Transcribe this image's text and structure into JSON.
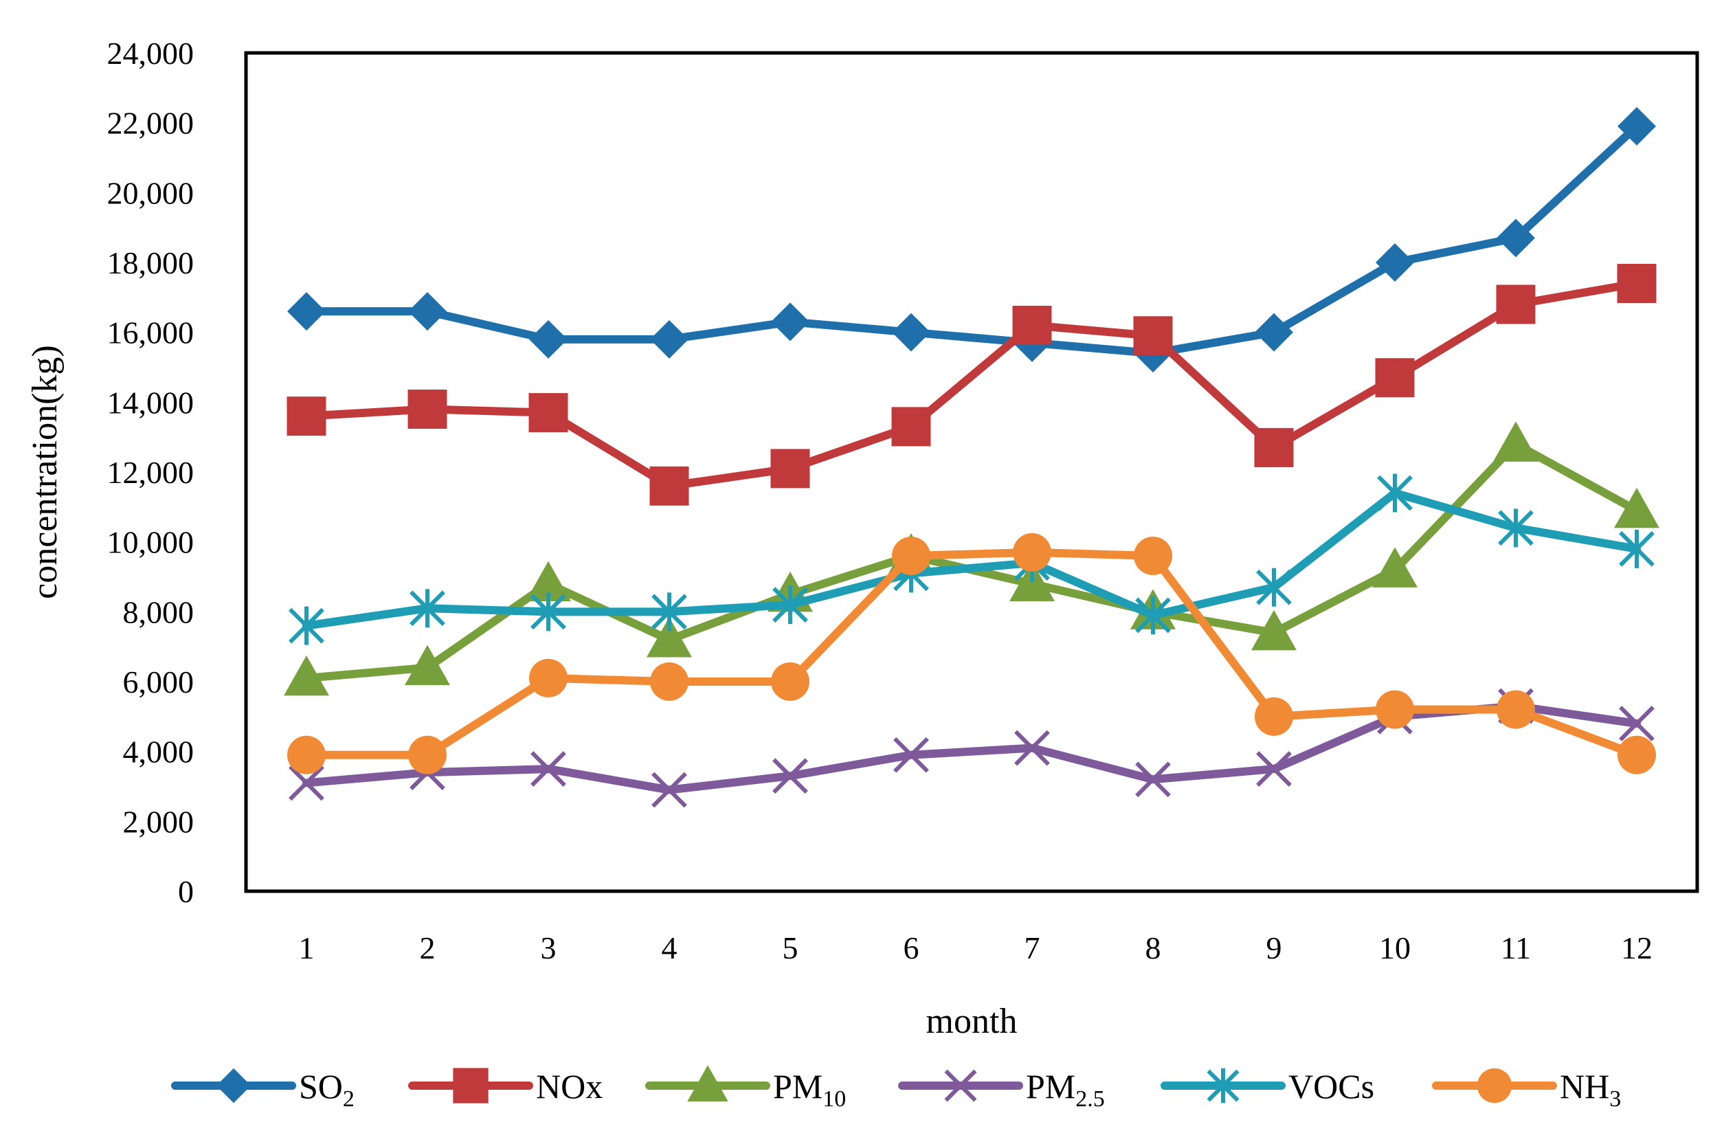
{
  "chart_data": {
    "type": "line",
    "title": "",
    "xlabel": "month",
    "ylabel": "concentration(kg)",
    "categories": [
      "1",
      "2",
      "3",
      "4",
      "5",
      "6",
      "7",
      "8",
      "9",
      "10",
      "11",
      "12"
    ],
    "ylim": [
      0,
      24000
    ],
    "yticks": [
      0,
      2000,
      4000,
      6000,
      8000,
      10000,
      12000,
      14000,
      16000,
      18000,
      20000,
      22000,
      24000
    ],
    "ytick_labels": [
      "0",
      "2,000",
      "4,000",
      "6,000",
      "8,000",
      "10,000",
      "12,000",
      "14,000",
      "16,000",
      "18,000",
      "20,000",
      "22,000",
      "24,000"
    ],
    "grid": false,
    "legend_position": "bottom",
    "series": [
      {
        "name": "SO2",
        "label_main": "SO",
        "label_sub": "2",
        "color": "#1F6FAB",
        "marker": "diamond",
        "values": [
          16600,
          16600,
          15800,
          15800,
          16300,
          16000,
          15700,
          15400,
          16000,
          18000,
          18700,
          21900
        ]
      },
      {
        "name": "NOx",
        "label_main": "NOx",
        "label_sub": "",
        "color": "#C0393B",
        "marker": "square",
        "values": [
          13600,
          13800,
          13700,
          11600,
          12100,
          13300,
          16200,
          15900,
          12700,
          14700,
          16800,
          17400
        ]
      },
      {
        "name": "PM10",
        "label_main": "PM",
        "label_sub": "10",
        "color": "#77A03D",
        "marker": "triangle",
        "values": [
          6100,
          6400,
          8800,
          7200,
          8500,
          9600,
          8800,
          8000,
          7400,
          9200,
          12800,
          10900
        ]
      },
      {
        "name": "PM2.5",
        "label_main": "PM",
        "label_sub": "2.5",
        "color": "#7E5A9B",
        "marker": "x",
        "values": [
          3100,
          3400,
          3500,
          2900,
          3300,
          3900,
          4100,
          3200,
          3500,
          5000,
          5300,
          4800
        ]
      },
      {
        "name": "VOCs",
        "label_main": "VOCs",
        "label_sub": "",
        "color": "#1F9DB5",
        "marker": "star",
        "values": [
          7600,
          8100,
          8000,
          8000,
          8200,
          9100,
          9400,
          7900,
          8700,
          11400,
          10400,
          9800
        ]
      },
      {
        "name": "NH3",
        "label_main": "NH",
        "label_sub": "3",
        "color": "#F18A34",
        "marker": "circle",
        "values": [
          3900,
          3900,
          6100,
          6000,
          6000,
          9600,
          9700,
          9600,
          5000,
          5200,
          5200,
          3900
        ]
      }
    ]
  }
}
